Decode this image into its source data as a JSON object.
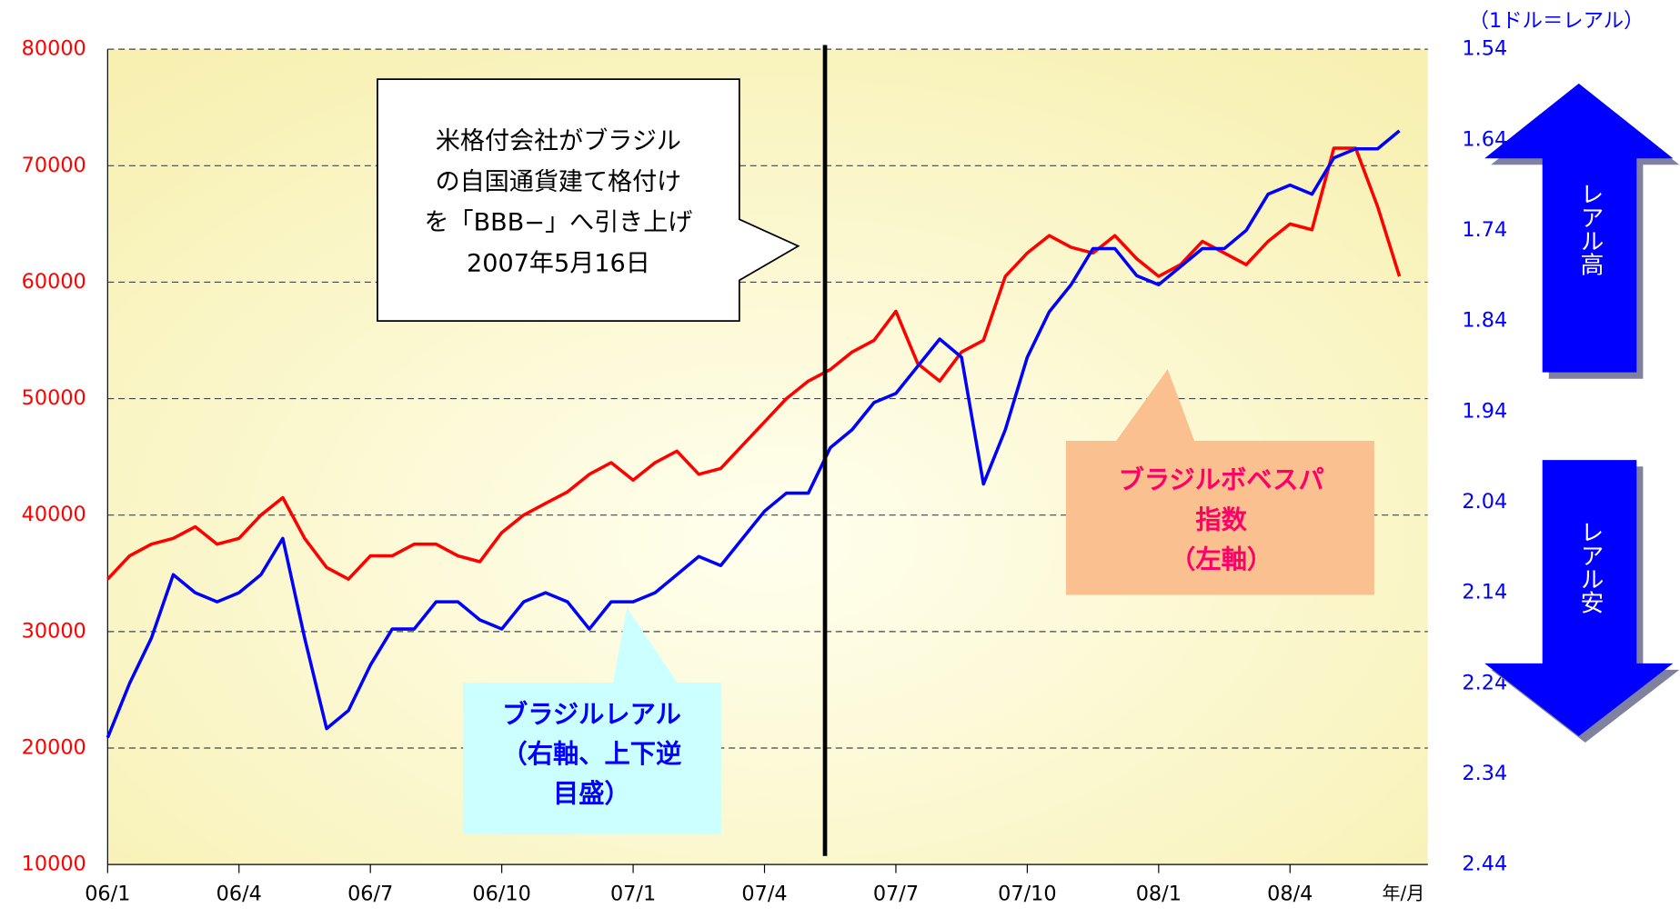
{
  "chart_data": {
    "type": "line",
    "categories": [
      "06/1",
      null,
      null,
      null,
      null,
      null,
      "06/4",
      null,
      null,
      null,
      null,
      null,
      "06/7",
      null,
      null,
      null,
      null,
      null,
      "06/10",
      null,
      null,
      null,
      null,
      null,
      "07/1",
      null,
      null,
      null,
      null,
      null,
      "07/4",
      null,
      null,
      null,
      null,
      null,
      "07/7",
      null,
      null,
      null,
      null,
      null,
      "07/10",
      null,
      null,
      null,
      null,
      null,
      "08/1",
      null,
      null,
      null,
      null,
      null,
      "08/4",
      null,
      null,
      null,
      null,
      null
    ],
    "series": [
      {
        "label_lines": [
          "ブラジルボベスパ",
          "指数",
          "（左軸）"
        ],
        "color": "#ff0000",
        "axis": "y",
        "values": [
          34500,
          36500,
          37500,
          38000,
          39000,
          37500,
          38000,
          40000,
          41500,
          38000,
          35500,
          34500,
          36500,
          36500,
          37500,
          37500,
          36500,
          36000,
          38500,
          40000,
          41000,
          42000,
          43500,
          44500,
          43000,
          44500,
          45500,
          43500,
          44000,
          46000,
          48000,
          50000,
          51500,
          52500,
          54000,
          55000,
          57500,
          53000,
          51500,
          54000,
          55000,
          60500,
          62500,
          64000,
          63000,
          62500,
          64000,
          62000,
          60500,
          61500,
          63500,
          62500,
          61500,
          63500,
          65000,
          64500,
          71500,
          71500,
          66500,
          60500
        ]
      },
      {
        "label_lines": [
          "ブラジルレアル",
          "（右軸、上下逆",
          "目盛）"
        ],
        "color": "#0000ff",
        "axis": "y2",
        "values": [
          2.3,
          2.24,
          2.19,
          2.12,
          2.14,
          2.15,
          2.14,
          2.12,
          2.08,
          2.19,
          2.29,
          2.27,
          2.22,
          2.18,
          2.18,
          2.15,
          2.15,
          2.17,
          2.18,
          2.15,
          2.14,
          2.15,
          2.18,
          2.15,
          2.15,
          2.14,
          2.12,
          2.1,
          2.11,
          2.08,
          2.05,
          2.03,
          2.03,
          1.98,
          1.96,
          1.93,
          1.92,
          1.89,
          1.86,
          1.88,
          2.02,
          1.96,
          1.88,
          1.83,
          1.8,
          1.76,
          1.76,
          1.79,
          1.8,
          1.78,
          1.76,
          1.76,
          1.74,
          1.7,
          1.69,
          1.7,
          1.66,
          1.65,
          1.65,
          1.63
        ]
      }
    ],
    "ylim": [
      10000,
      80000
    ],
    "yticks": [
      10000,
      20000,
      30000,
      40000,
      50000,
      60000,
      70000,
      80000
    ],
    "y2lim": [
      2.44,
      1.54
    ],
    "y2ticks": [
      2.44,
      2.34,
      2.24,
      2.14,
      2.04,
      1.94,
      1.84,
      1.74,
      1.64,
      1.54
    ],
    "y2_unit_label": "（1ドル＝レアル）",
    "x_unit_label": "年/月",
    "grid": true,
    "callout_lines": [
      "米格付会社がブラジル",
      "の自国通貨建て格付け",
      "を「BBB−」へ引き上げ",
      "2007年5月16日"
    ],
    "arrow_up_label": "レアル高",
    "arrow_down_label": "レアル安"
  }
}
